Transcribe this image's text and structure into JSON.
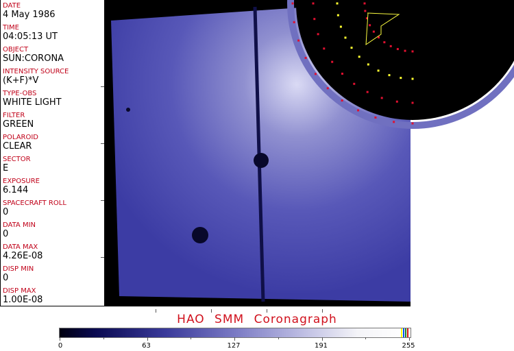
{
  "fields": [
    {
      "label": "DATE",
      "value": "4 May 1986"
    },
    {
      "label": "TIME",
      "value": "04:05:13 UT"
    },
    {
      "label": "OBJECT",
      "value": "SUN:CORONA"
    },
    {
      "label": "INTENSITY SOURCE",
      "value": "(K+F)*V"
    },
    {
      "label": "TYPE-OBS",
      "value": "WHITE LIGHT"
    },
    {
      "label": "FILTER",
      "value": "GREEN"
    },
    {
      "label": "POLAROID",
      "value": "CLEAR"
    },
    {
      "label": "SECTOR",
      "value": "E"
    },
    {
      "label": "EXPOSURE",
      "value": "6.144"
    },
    {
      "label": "SPACECRAFT ROLL",
      "value": "0"
    },
    {
      "label": "DATA MIN",
      "value": "0"
    },
    {
      "label": "DATA MAX",
      "value": "4.26E-08"
    },
    {
      "label": "DISP MIN",
      "value": "0"
    },
    {
      "label": "DISP MAX",
      "value": "1.00E-08"
    }
  ],
  "title": "HAO  SMM  Coronagraph",
  "colorbar": {
    "ticks": [
      "0",
      "63",
      "127",
      "191",
      "255"
    ],
    "min": 0,
    "max": 255
  },
  "colors": {
    "label": "#c00018",
    "title": "#d0101c",
    "image": "#4a4ab0",
    "grid_red": "#e01030",
    "grid_yellow": "#ffff30"
  }
}
